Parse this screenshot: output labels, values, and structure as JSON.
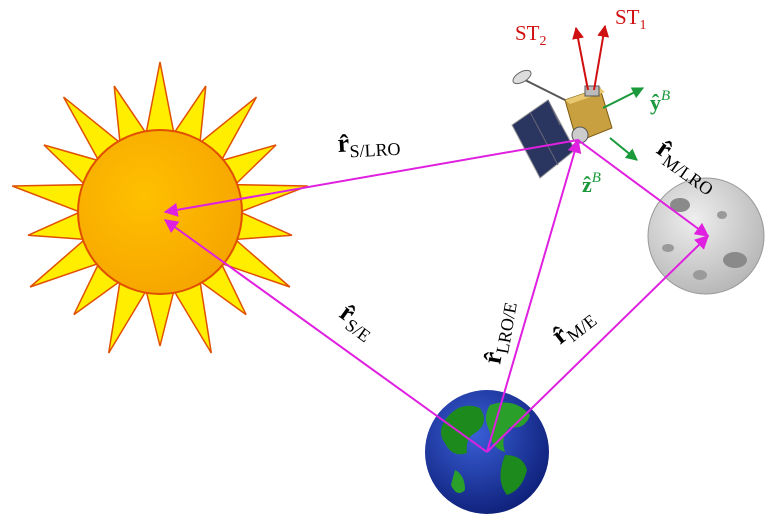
{
  "vectors": {
    "sun_from_lro": {
      "symbol": "r̂",
      "subscript": "S/LRO"
    },
    "sun_from_earth": {
      "symbol": "r̂",
      "subscript": "S/E"
    },
    "lro_from_earth": {
      "symbol": "r̂",
      "subscript": "LRO/E"
    },
    "moon_from_earth": {
      "symbol": "r̂",
      "subscript": "M/E"
    },
    "moon_from_lro": {
      "symbol": "r̂",
      "subscript": "M/LRO"
    }
  },
  "body_axes": {
    "y": {
      "symbol": "ŷ",
      "superscript": "B"
    },
    "z": {
      "symbol": "ẑ",
      "superscript": "B"
    }
  },
  "star_trackers": [
    {
      "name": "ST",
      "subscript": "2"
    },
    {
      "name": "ST",
      "subscript": "1"
    }
  ]
}
